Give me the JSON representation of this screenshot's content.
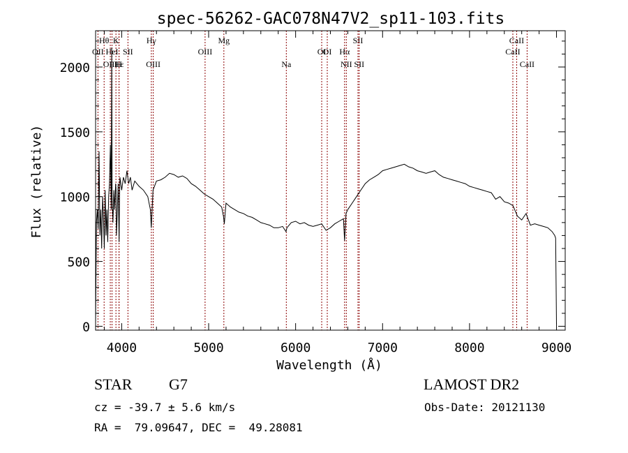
{
  "chart_data": {
    "type": "line",
    "title": "spec-56262-GAC078N47V2_sp11-103.fits",
    "xlabel": "Wavelength (Å)",
    "ylabel": "Flux (relative)",
    "xlim": [
      3700,
      9100
    ],
    "ylim": [
      -30,
      2280
    ],
    "xticks": [
      4000,
      5000,
      6000,
      7000,
      8000,
      9000
    ],
    "yticks": [
      0,
      500,
      1000,
      1500,
      2000
    ],
    "grid": false,
    "line_color": "#000000",
    "marker_color": "#8b0000",
    "series": [
      {
        "x": [
          3700,
          3710,
          3720,
          3730,
          3740,
          3750,
          3760,
          3770,
          3780,
          3790,
          3800,
          3810,
          3820,
          3830,
          3840,
          3850,
          3860,
          3870,
          3880,
          3885,
          3890,
          3900,
          3910,
          3920,
          3930,
          3935,
          3940,
          3950,
          3960,
          3970,
          3975,
          3980,
          3990,
          4000,
          4020,
          4040,
          4060,
          4080,
          4100,
          4120,
          4150,
          4200,
          4250,
          4300,
          4330,
          4340,
          4360,
          4400,
          4450,
          4500,
          4550,
          4600,
          4650,
          4700,
          4750,
          4800,
          4850,
          4900,
          4950,
          5000,
          5050,
          5100,
          5150,
          5170,
          5180,
          5200,
          5250,
          5300,
          5350,
          5400,
          5450,
          5500,
          5550,
          5600,
          5650,
          5700,
          5750,
          5800,
          5850,
          5890,
          5900,
          5950,
          6000,
          6050,
          6100,
          6150,
          6200,
          6250,
          6300,
          6350,
          6400,
          6450,
          6500,
          6550,
          6563,
          6580,
          6600,
          6650,
          6700,
          6750,
          6800,
          6850,
          6900,
          6950,
          7000,
          7050,
          7100,
          7150,
          7200,
          7250,
          7300,
          7350,
          7400,
          7450,
          7500,
          7550,
          7600,
          7650,
          7700,
          7750,
          7800,
          7850,
          7900,
          7950,
          8000,
          8050,
          8100,
          8150,
          8200,
          8250,
          8300,
          8350,
          8400,
          8450,
          8500,
          8550,
          8600,
          8650,
          8700,
          8750,
          8800,
          8850,
          8900,
          8950,
          8980,
          8990,
          9000
        ],
        "y": [
          20,
          800,
          900,
          750,
          1350,
          700,
          900,
          600,
          1000,
          850,
          600,
          1050,
          700,
          900,
          650,
          1000,
          1100,
          1400,
          900,
          2150,
          1000,
          800,
          1050,
          900,
          1100,
          1050,
          700,
          900,
          1100,
          650,
          1000,
          1150,
          1100,
          1050,
          1150,
          1100,
          1200,
          1100,
          1150,
          1050,
          1120,
          1080,
          1050,
          1000,
          900,
          760,
          1050,
          1120,
          1130,
          1150,
          1180,
          1170,
          1150,
          1160,
          1140,
          1100,
          1080,
          1050,
          1020,
          1000,
          980,
          950,
          920,
          850,
          790,
          950,
          920,
          900,
          880,
          870,
          850,
          840,
          820,
          800,
          790,
          780,
          760,
          760,
          770,
          730,
          760,
          800,
          810,
          790,
          800,
          780,
          770,
          780,
          790,
          740,
          760,
          790,
          810,
          830,
          660,
          870,
          900,
          950,
          1000,
          1050,
          1100,
          1130,
          1150,
          1170,
          1200,
          1210,
          1220,
          1230,
          1240,
          1250,
          1230,
          1220,
          1200,
          1190,
          1180,
          1190,
          1200,
          1170,
          1150,
          1140,
          1130,
          1120,
          1110,
          1100,
          1080,
          1070,
          1060,
          1050,
          1040,
          1030,
          980,
          1000,
          960,
          950,
          930,
          850,
          820,
          870,
          780,
          790,
          780,
          770,
          760,
          730,
          700,
          680,
          20
        ]
      }
    ],
    "line_markers": [
      {
        "label": "Hθ",
        "wave": 3798,
        "row": 1
      },
      {
        "label": "K",
        "wave": 3934,
        "row": 1
      },
      {
        "label": "Hγ",
        "wave": 4341,
        "row": 1
      },
      {
        "label": "Mg",
        "wave": 5175,
        "row": 1
      },
      {
        "label": "SII",
        "wave": 6717,
        "row": 1
      },
      {
        "label": "CaII",
        "wave": 8542,
        "row": 1
      },
      {
        "label": "OII",
        "wave": 3727,
        "row": 2
      },
      {
        "label": "HeI",
        "wave": 3889,
        "row": 2
      },
      {
        "label": "SII",
        "wave": 4072,
        "row": 2
      },
      {
        "label": "OIII",
        "wave": 4959,
        "row": 2
      },
      {
        "label": "OI",
        "wave": 6300,
        "row": 2
      },
      {
        "label": "Hα",
        "wave": 6563,
        "row": 2
      },
      {
        "label": "OI",
        "wave": 6364,
        "row": 1.5
      },
      {
        "label": "CaII",
        "wave": 8498,
        "row": 2
      },
      {
        "label": "OIII",
        "wave": 3869,
        "row": 3
      },
      {
        "label": "Hε",
        "wave": 3970,
        "row": 3
      },
      {
        "label": "H",
        "wave": 3969,
        "row": 3.01
      },
      {
        "label": "OIII",
        "wave": 4363,
        "row": 3
      },
      {
        "label": "Na",
        "wave": 5893,
        "row": 3
      },
      {
        "label": "NII",
        "wave": 6583,
        "row": 3
      },
      {
        "label": "SII",
        "wave": 6731,
        "row": 3
      },
      {
        "label": "CaII",
        "wave": 8662,
        "row": 3
      }
    ]
  },
  "info": {
    "object_class": "STAR",
    "subclass": "G7",
    "redshift": "cz = -39.7 ± 5.6 km/s",
    "coords": "RA =  79.09647, DEC =  49.28081",
    "survey": "LAMOST DR2",
    "obs_date": "Obs-Date: 20121130"
  }
}
